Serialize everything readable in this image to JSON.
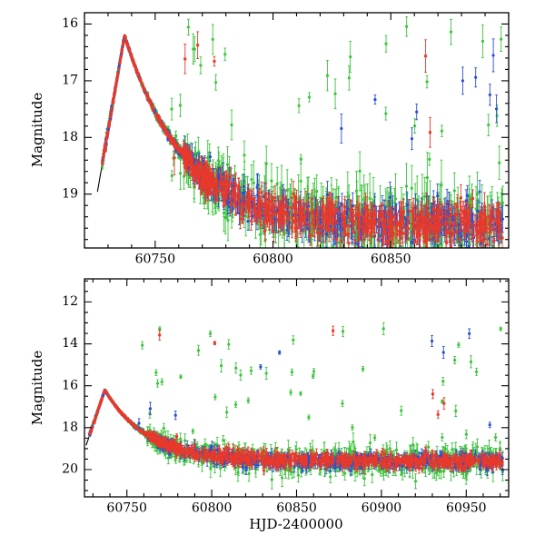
{
  "figure": {
    "background": "#ffffff",
    "axis_labels": {
      "y_top": "Magnitude",
      "y_bottom": "Magnitude",
      "x": "HJD-2400000"
    }
  },
  "seed": 1371129,
  "chart_data": [
    {
      "type": "scatter",
      "panel": "top",
      "title": "",
      "xlabel": "",
      "ylabel": "Magnitude",
      "grid": false,
      "legend": null,
      "x_range": [
        60720,
        60900
      ],
      "y_range_mag": [
        15.8,
        19.95
      ],
      "y_axis_inverted_brighter_up": true,
      "x_ticks": [
        60750,
        60800,
        60850
      ],
      "x_minor_step": 10,
      "y_ticks": [
        16,
        17,
        18,
        19
      ],
      "y_minor_step": 0.2,
      "t_range": [
        60727.5,
        60897.5
      ],
      "model_curve": {
        "color": "#000000",
        "peak_hjd": 60737,
        "peak_mag": 16.2,
        "plateau_mag": 19.55,
        "decline_tau_days": 25,
        "rise_rate_mag_per_day": 0.24
      },
      "curve_points": [
        [
          60728,
          18.36
        ],
        [
          60730,
          17.88
        ],
        [
          60732,
          17.4
        ],
        [
          60734,
          16.92
        ],
        [
          60736,
          16.44
        ],
        [
          60737,
          16.2
        ],
        [
          60740,
          16.58
        ],
        [
          60745,
          17.12
        ],
        [
          60750,
          17.56
        ],
        [
          60755,
          17.92
        ],
        [
          60760,
          18.21
        ],
        [
          60765,
          18.46
        ],
        [
          60770,
          18.66
        ],
        [
          60775,
          18.82
        ],
        [
          60780,
          18.95
        ],
        [
          60790,
          19.15
        ],
        [
          60800,
          19.28
        ],
        [
          60810,
          19.37
        ],
        [
          60825,
          19.45
        ],
        [
          60850,
          19.51
        ],
        [
          60875,
          19.53
        ],
        [
          60897,
          19.54
        ]
      ],
      "series": [
        {
          "name": "green-band",
          "color": "#3ec43e",
          "marker": "circle",
          "n": 520,
          "n_early": 150,
          "sigma_min": 0.03,
          "sigma_max": 0.3,
          "outlier_frac": 0.085,
          "outlier_mag_range": [
            15.9,
            18.7
          ]
        },
        {
          "name": "blue-band",
          "color": "#2b4fd0",
          "marker": "circle",
          "n": 470,
          "n_early": 140,
          "sigma_min": 0.025,
          "sigma_max": 0.18,
          "outlier_frac": 0.02,
          "outlier_mag_range": [
            16.5,
            18.6
          ]
        },
        {
          "name": "red-band",
          "color": "#e8392b",
          "marker": "square",
          "n": 640,
          "n_early": 160,
          "sigma_min": 0.02,
          "sigma_max": 0.16,
          "outlier_frac": 0.012,
          "outlier_mag_range": [
            16.2,
            18.6
          ]
        }
      ]
    },
    {
      "type": "scatter",
      "panel": "bottom",
      "title": "",
      "xlabel": "HJD-2400000",
      "ylabel": "Magnitude",
      "grid": false,
      "legend": null,
      "x_range": [
        60725,
        60975
      ],
      "y_range_mag": [
        10.9,
        21.3
      ],
      "y_axis_inverted_brighter_up": true,
      "x_ticks": [
        60750,
        60800,
        60850,
        60900,
        60950
      ],
      "x_minor_step": 10,
      "y_ticks": [
        12,
        14,
        16,
        18,
        20
      ],
      "y_minor_step": 0.5,
      "t_range": [
        60728,
        60971.5
      ],
      "model_curve": {
        "color": "#000000",
        "peak_hjd": 60737,
        "peak_mag": 16.2,
        "plateau_mag": 19.6,
        "decline_tau_days": 25,
        "rise_rate_mag_per_day": 0.24
      },
      "curve_points": [
        [
          60730,
          17.88
        ],
        [
          60734,
          16.92
        ],
        [
          60737,
          16.2
        ],
        [
          60742,
          16.82
        ],
        [
          60748,
          17.41
        ],
        [
          60755,
          17.95
        ],
        [
          60762,
          18.35
        ],
        [
          60770,
          18.69
        ],
        [
          60780,
          18.99
        ],
        [
          60790,
          19.19
        ],
        [
          60800,
          19.33
        ],
        [
          60815,
          19.45
        ],
        [
          60835,
          19.53
        ],
        [
          60860,
          19.57
        ],
        [
          60900,
          19.59
        ],
        [
          60950,
          19.6
        ],
        [
          60971,
          19.6
        ]
      ],
      "series": [
        {
          "name": "green-band",
          "color": "#3ec43e",
          "marker": "circle",
          "n": 620,
          "n_early": 150,
          "sigma_min": 0.03,
          "sigma_max": 0.3,
          "outlier_frac": 0.06,
          "outlier_mag_range": [
            13.2,
            18.7
          ]
        },
        {
          "name": "blue-band",
          "color": "#2b4fd0",
          "marker": "circle",
          "n": 560,
          "n_early": 140,
          "sigma_min": 0.025,
          "sigma_max": 0.18,
          "outlier_frac": 0.014,
          "outlier_mag_range": [
            12.2,
            18.5
          ]
        },
        {
          "name": "red-band",
          "color": "#e8392b",
          "marker": "square",
          "n": 720,
          "n_early": 160,
          "sigma_min": 0.02,
          "sigma_max": 0.16,
          "outlier_frac": 0.01,
          "outlier_mag_range": [
            12.8,
            18.5
          ]
        }
      ]
    }
  ]
}
